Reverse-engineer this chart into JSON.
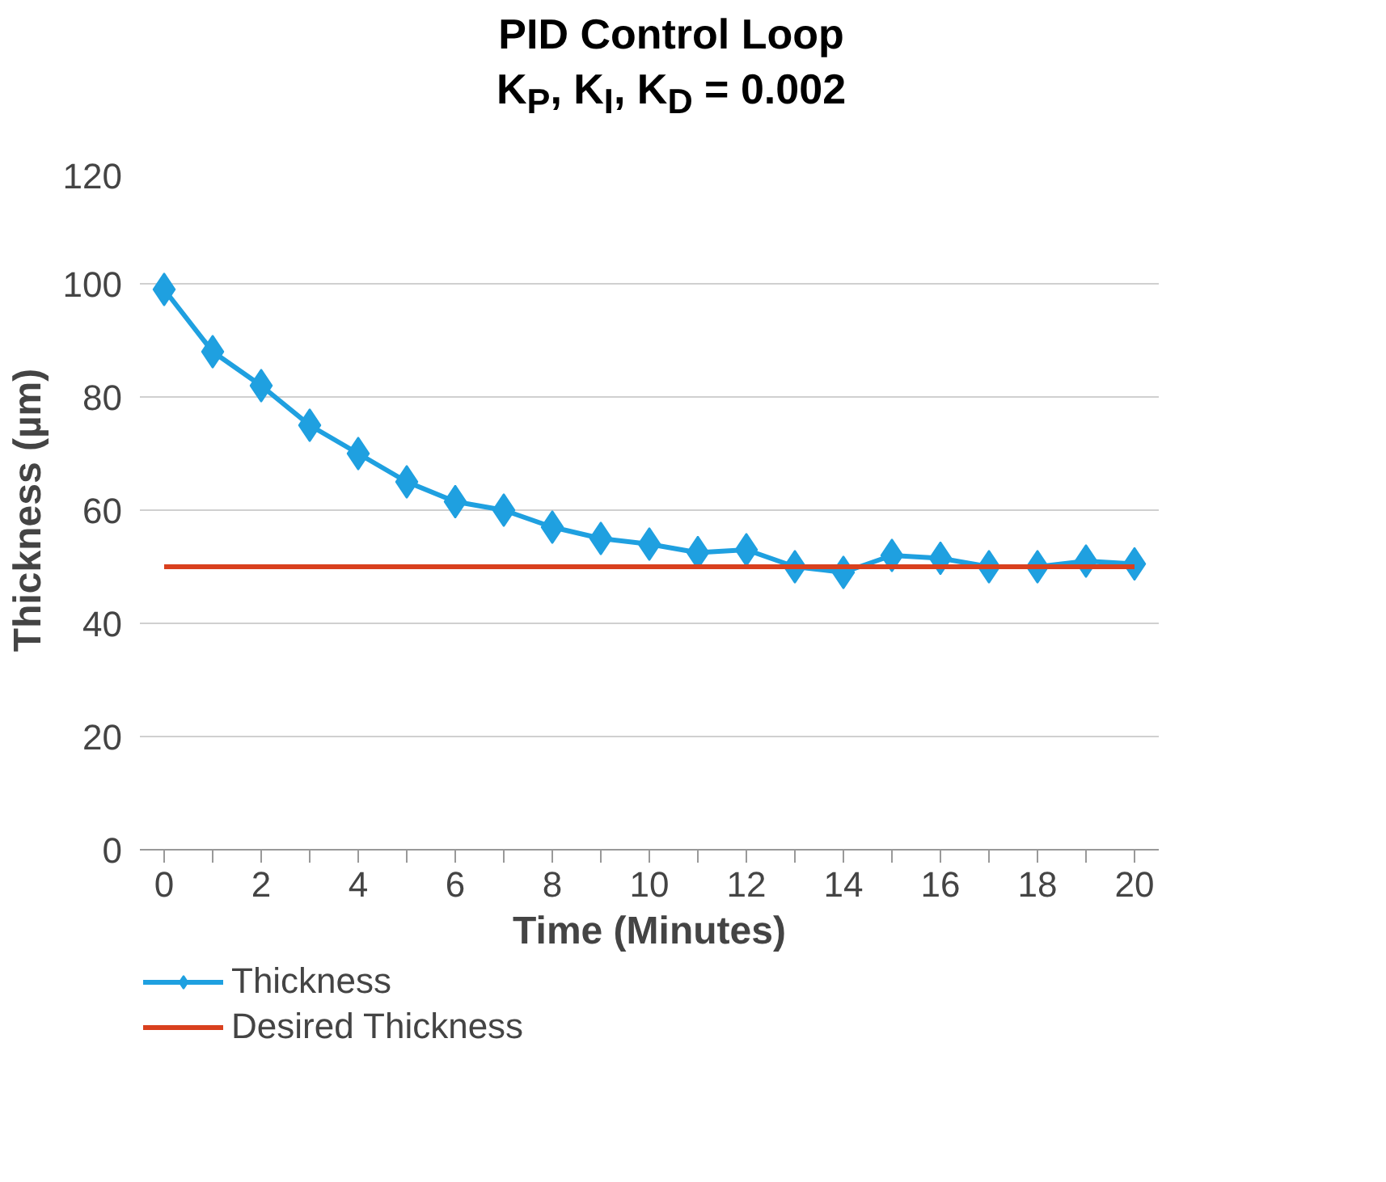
{
  "chart_data": {
    "type": "line",
    "title": "PID Control Loop",
    "subtitle": "K$_{P}$, K$_{I}$, K$_{D}$ = 0.002",
    "xlabel": "Time (Minutes)",
    "ylabel": "Thickness (µm)",
    "x": [
      0,
      1,
      2,
      3,
      4,
      5,
      6,
      7,
      8,
      9,
      10,
      11,
      12,
      13,
      14,
      15,
      16,
      17,
      18,
      19,
      20
    ],
    "series": [
      {
        "name": "Thickness",
        "color": "#1fa0e0",
        "marker": "diamond",
        "values": [
          99,
          88,
          82,
          75,
          70,
          65,
          61.5,
          60,
          57,
          55,
          54,
          52.5,
          53,
          50,
          49,
          52,
          51.5,
          50,
          50,
          51,
          50.5
        ]
      },
      {
        "name": "Desired Thickness",
        "color": "#d9401e",
        "marker": "none",
        "x": [
          0,
          20
        ],
        "values": [
          50,
          50
        ]
      }
    ],
    "xlim": [
      -0.5,
      20.5
    ],
    "ylim": [
      0,
      120
    ],
    "xticks": [
      0,
      {
        "value": 1,
        "label": null
      },
      2,
      {
        "value": 3,
        "label": null
      },
      4,
      {
        "value": 5,
        "label": null
      },
      6,
      {
        "value": 7,
        "label": null
      },
      8,
      {
        "value": 9,
        "label": null
      },
      10,
      {
        "value": 11,
        "label": null
      },
      12,
      {
        "value": 13,
        "label": null
      },
      14,
      {
        "value": 15,
        "label": null
      },
      16,
      {
        "value": 17,
        "label": null
      },
      18,
      {
        "value": 19,
        "label": null
      },
      20
    ],
    "yticks": [
      0,
      20,
      40,
      60,
      80,
      100,
      120
    ],
    "grid": "y",
    "legend": "bottom left",
    "line_style": "solid"
  }
}
